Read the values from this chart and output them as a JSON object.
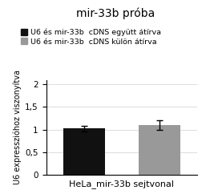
{
  "title": "mir-33b próba",
  "bar_values": [
    1.02,
    1.1
  ],
  "bar_errors": [
    0.07,
    0.1
  ],
  "bar_colors": [
    "#111111",
    "#999999"
  ],
  "legend_labels": [
    "U6 és mir-33b  cDNS együtt átírva",
    "U6 és mir-33b  cDNS külön átírva"
  ],
  "ylabel": "U6 expresszióhoz viszonyítva",
  "xlabel": "HeLa_mir-33b sejtvonal",
  "ylim": [
    0,
    2.1
  ],
  "yticks": [
    0,
    0.5,
    1,
    1.5,
    2
  ],
  "ytick_labels": [
    "0",
    "0,5",
    "1",
    "1,5",
    "2"
  ],
  "bar_positions": [
    0.5,
    1.5
  ],
  "bar_width": 0.55,
  "background_color": "#ffffff",
  "title_fontsize": 10,
  "label_fontsize": 7.0,
  "tick_fontsize": 7.5,
  "legend_fontsize": 6.8,
  "xlabel_fontsize": 8.0
}
